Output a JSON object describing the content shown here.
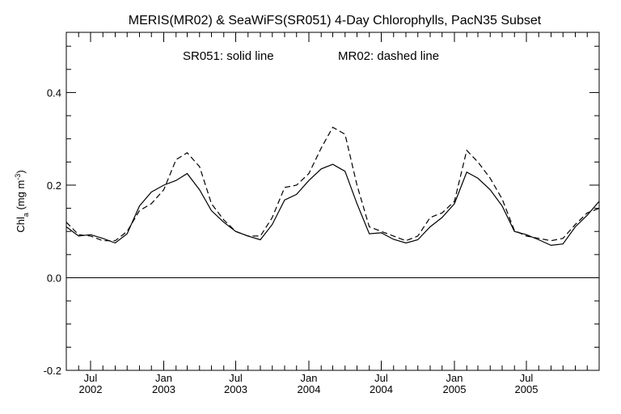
{
  "chart_data": {
    "type": "line",
    "title": "MERIS(MR02) & SeaWiFS(SR051) 4-Day Chlorophylls, PacN35 Subset",
    "annotation": {
      "part1": "SR051: solid line",
      "part2": "MR02: dashed line"
    },
    "ylabel": {
      "base": "Chl",
      "sub": "a",
      "unit_open": " (mg m",
      "sup": "-3",
      "unit_close": ")"
    },
    "xlim": [
      "2002-05-01",
      "2005-12-31"
    ],
    "ylim": [
      -0.2,
      0.53
    ],
    "yticks": [
      {
        "value": -0.2,
        "label": "-0.2"
      },
      {
        "value": 0.0,
        "label": "0.0"
      },
      {
        "value": 0.2,
        "label": "0.2"
      },
      {
        "value": 0.4,
        "label": "0.4"
      }
    ],
    "xticks": [
      {
        "date": "2002-07-01",
        "month": "Jul",
        "year": "2002"
      },
      {
        "date": "2003-01-01",
        "month": "Jan",
        "year": "2003"
      },
      {
        "date": "2003-07-01",
        "month": "Jul",
        "year": "2003"
      },
      {
        "date": "2004-01-01",
        "month": "Jan",
        "year": "2004"
      },
      {
        "date": "2004-07-01",
        "month": "Jul",
        "year": "2004"
      },
      {
        "date": "2005-01-01",
        "month": "Jan",
        "year": "2005"
      },
      {
        "date": "2005-07-01",
        "month": "Jul",
        "year": "2005"
      }
    ],
    "series": [
      {
        "name": "SR051",
        "style": "solid",
        "color": "#000000",
        "points": [
          [
            "2002-05-01",
            0.11
          ],
          [
            "2002-06-01",
            0.09
          ],
          [
            "2002-07-01",
            0.093
          ],
          [
            "2002-08-01",
            0.085
          ],
          [
            "2002-09-01",
            0.075
          ],
          [
            "2002-10-01",
            0.095
          ],
          [
            "2002-11-01",
            0.155
          ],
          [
            "2002-12-01",
            0.185
          ],
          [
            "2003-01-01",
            0.2
          ],
          [
            "2003-02-01",
            0.21
          ],
          [
            "2003-03-01",
            0.225
          ],
          [
            "2003-04-01",
            0.19
          ],
          [
            "2003-05-01",
            0.145
          ],
          [
            "2003-06-01",
            0.12
          ],
          [
            "2003-07-01",
            0.1
          ],
          [
            "2003-08-01",
            0.09
          ],
          [
            "2003-09-01",
            0.082
          ],
          [
            "2003-10-01",
            0.115
          ],
          [
            "2003-11-01",
            0.168
          ],
          [
            "2003-12-01",
            0.18
          ],
          [
            "2004-01-01",
            0.21
          ],
          [
            "2004-02-01",
            0.235
          ],
          [
            "2004-03-01",
            0.245
          ],
          [
            "2004-04-01",
            0.23
          ],
          [
            "2004-05-01",
            0.16
          ],
          [
            "2004-06-01",
            0.095
          ],
          [
            "2004-07-01",
            0.097
          ],
          [
            "2004-08-01",
            0.083
          ],
          [
            "2004-09-01",
            0.075
          ],
          [
            "2004-10-01",
            0.082
          ],
          [
            "2004-11-01",
            0.11
          ],
          [
            "2004-12-01",
            0.13
          ],
          [
            "2005-01-01",
            0.16
          ],
          [
            "2005-02-01",
            0.228
          ],
          [
            "2005-03-01",
            0.215
          ],
          [
            "2005-04-01",
            0.19
          ],
          [
            "2005-05-01",
            0.155
          ],
          [
            "2005-06-01",
            0.1
          ],
          [
            "2005-07-01",
            0.093
          ],
          [
            "2005-08-01",
            0.082
          ],
          [
            "2005-09-01",
            0.07
          ],
          [
            "2005-10-01",
            0.073
          ],
          [
            "2005-11-01",
            0.11
          ],
          [
            "2005-12-01",
            0.135
          ],
          [
            "2005-12-31",
            0.165
          ]
        ]
      },
      {
        "name": "MR02",
        "style": "dashed",
        "color": "#000000",
        "points": [
          [
            "2002-05-01",
            0.12
          ],
          [
            "2002-06-01",
            0.093
          ],
          [
            "2002-07-01",
            0.09
          ],
          [
            "2002-08-01",
            0.08
          ],
          [
            "2002-09-01",
            0.08
          ],
          [
            "2002-10-01",
            0.1
          ],
          [
            "2002-11-01",
            0.145
          ],
          [
            "2002-12-01",
            0.16
          ],
          [
            "2003-01-01",
            0.19
          ],
          [
            "2003-02-01",
            0.255
          ],
          [
            "2003-03-01",
            0.27
          ],
          [
            "2003-04-01",
            0.24
          ],
          [
            "2003-05-01",
            0.16
          ],
          [
            "2003-06-01",
            0.125
          ],
          [
            "2003-07-01",
            0.1
          ],
          [
            "2003-08-01",
            0.09
          ],
          [
            "2003-09-01",
            0.09
          ],
          [
            "2003-10-01",
            0.13
          ],
          [
            "2003-11-01",
            0.195
          ],
          [
            "2003-12-01",
            0.2
          ],
          [
            "2004-01-01",
            0.225
          ],
          [
            "2004-02-01",
            0.28
          ],
          [
            "2004-03-01",
            0.325
          ],
          [
            "2004-04-01",
            0.31
          ],
          [
            "2004-05-01",
            0.2
          ],
          [
            "2004-06-01",
            0.11
          ],
          [
            "2004-07-01",
            0.1
          ],
          [
            "2004-08-01",
            0.09
          ],
          [
            "2004-09-01",
            0.08
          ],
          [
            "2004-10-01",
            0.09
          ],
          [
            "2004-11-01",
            0.13
          ],
          [
            "2004-12-01",
            0.14
          ],
          [
            "2005-01-01",
            0.165
          ],
          [
            "2005-02-01",
            0.275
          ],
          [
            "2005-03-01",
            0.25
          ],
          [
            "2005-04-01",
            0.215
          ],
          [
            "2005-05-01",
            0.17
          ],
          [
            "2005-06-01",
            0.102
          ],
          [
            "2005-07-01",
            0.09
          ],
          [
            "2005-08-01",
            0.085
          ],
          [
            "2005-09-01",
            0.08
          ],
          [
            "2005-10-01",
            0.085
          ],
          [
            "2005-11-01",
            0.115
          ],
          [
            "2005-12-01",
            0.14
          ],
          [
            "2005-12-31",
            0.15
          ]
        ]
      }
    ],
    "zero_line": true,
    "grid": false,
    "legend": "none"
  }
}
